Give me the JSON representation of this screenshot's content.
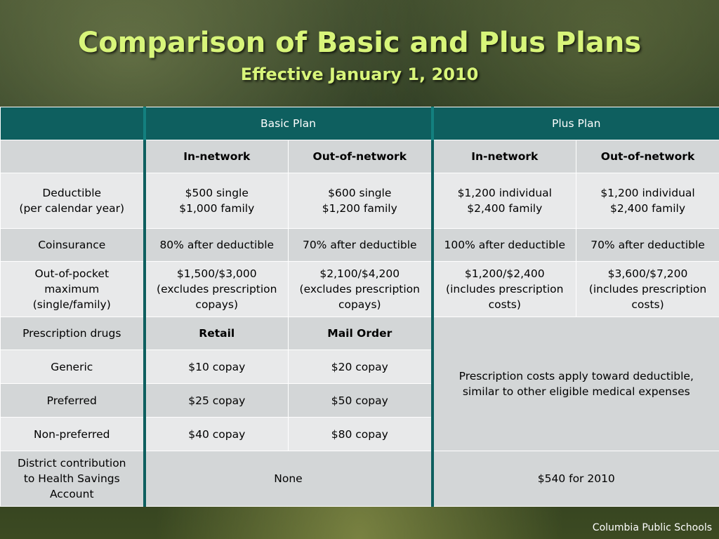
{
  "slide": {
    "title": "Comparison of Basic and Plus Plans",
    "subtitle": "Effective January 1, 2010",
    "footer": "Columbia Public Schools"
  },
  "table": {
    "plan_headers": {
      "basic": "Basic Plan",
      "plus": "Plus Plan"
    },
    "network_headers": [
      "In-network",
      "Out-of-network",
      "In-network",
      "Out-of-network"
    ],
    "deductible": {
      "label_line1": "Deductible",
      "label_line2": "(per calendar year)",
      "values": [
        [
          "$500 single",
          "$1,000 family"
        ],
        [
          "$600 single",
          "$1,200 family"
        ],
        [
          "$1,200 individual",
          "$2,400 family"
        ],
        [
          "$1,200 individual",
          "$2,400 family"
        ]
      ]
    },
    "coinsurance": {
      "label": "Coinsurance",
      "values": [
        "80% after deductible",
        "70% after deductible",
        "100% after deductible",
        "70% after deductible"
      ]
    },
    "oop": {
      "label_lines": [
        "Out-of-pocket",
        "maximum",
        "(single/family)"
      ],
      "values": [
        [
          "$1,500/$3,000",
          "(excludes prescription",
          "copays)"
        ],
        [
          "$2,100/$4,200",
          "(excludes prescription",
          "copays)"
        ],
        [
          "$1,200/$2,400",
          "(includes prescription",
          "costs)"
        ],
        [
          "$3,600/$7,200",
          "(includes prescription",
          "costs)"
        ]
      ]
    },
    "rx": {
      "label": "Prescription drugs",
      "retail": "Retail",
      "mail_order": "Mail Order",
      "plus_note_line1": "Prescription costs apply toward deductible,",
      "plus_note_line2": "similar to other eligible medical expenses",
      "tiers": [
        {
          "label": "Generic",
          "retail": "$10 copay",
          "mail": "$20 copay"
        },
        {
          "label": "Preferred",
          "retail": "$25 copay",
          "mail": "$50 copay"
        },
        {
          "label": "Non-preferred",
          "retail": "$40 copay",
          "mail": "$80 copay"
        }
      ]
    },
    "hsa": {
      "label_lines": [
        "District contribution",
        "to Health Savings",
        "Account"
      ],
      "basic": "None",
      "plus": "$540 for 2010"
    }
  }
}
